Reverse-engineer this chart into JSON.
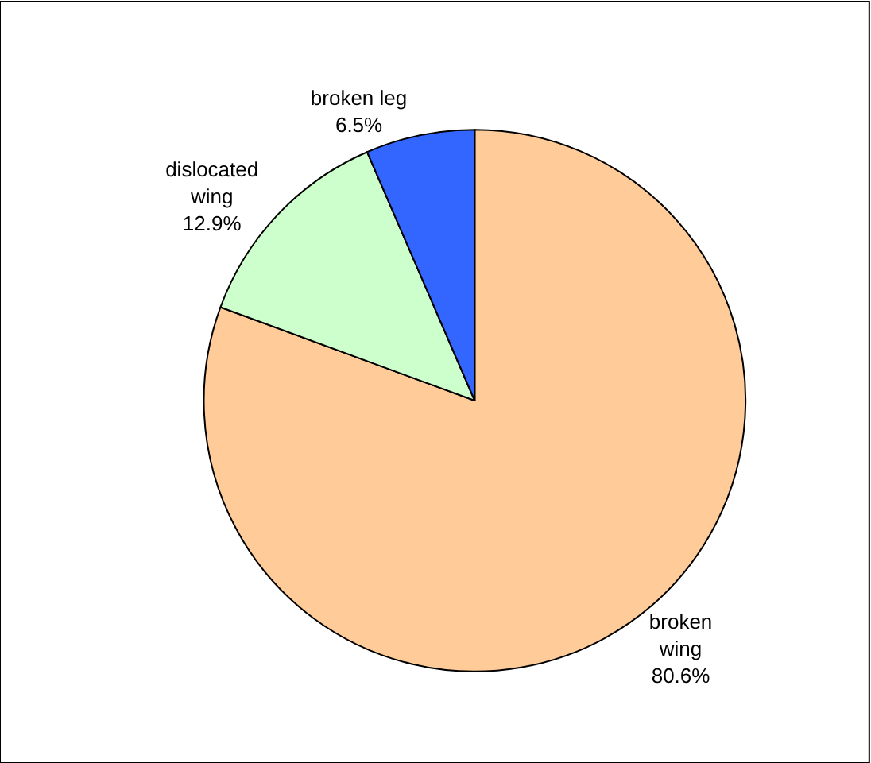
{
  "chart_data": {
    "type": "pie",
    "categories": [
      "broken\nwing",
      "dislocated\nwing",
      "broken leg"
    ],
    "values": [
      80.6,
      12.9,
      6.5
    ],
    "value_labels": [
      "80.6%",
      "12.9%",
      "6.5%"
    ],
    "colors": [
      "#ffcc99",
      "#ccffcc",
      "#3366ff"
    ],
    "legend": false
  }
}
